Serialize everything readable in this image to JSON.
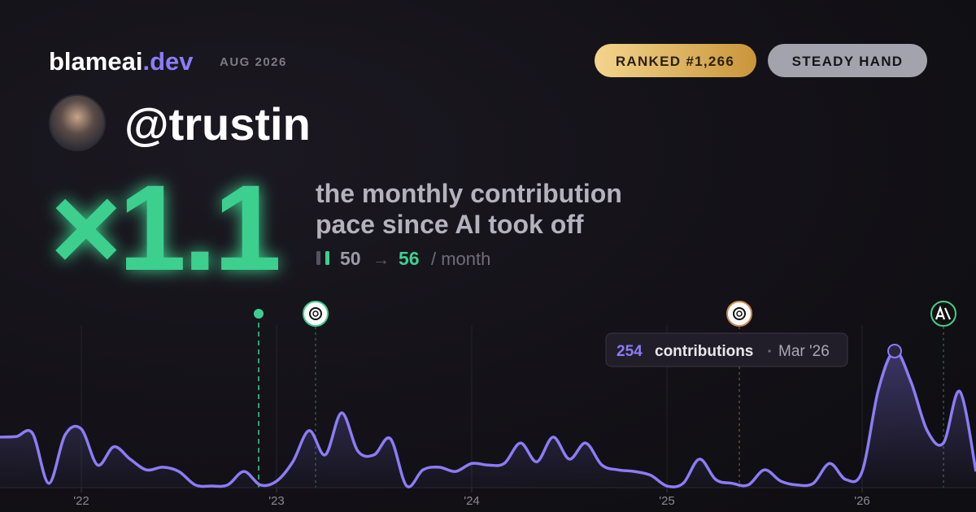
{
  "header": {
    "brand": "blameai",
    "brand_suffix": ".dev",
    "date": "AUG 2026",
    "badges": [
      "RANKED #1,266",
      "STEADY HAND"
    ],
    "username": "@trustin"
  },
  "summary": {
    "multiplier": "×1.1",
    "description": [
      "the monthly contribution",
      "pace since AI took off"
    ],
    "before": 50,
    "arrow": "→",
    "after": 56,
    "unit": "/ month"
  },
  "chart_data": {
    "type": "line",
    "categories": [
      null,
      null,
      null,
      null,
      null,
      "'22",
      null,
      null,
      null,
      null,
      null,
      null,
      null,
      null,
      null,
      null,
      null,
      "'23",
      null,
      null,
      null,
      null,
      null,
      null,
      null,
      null,
      null,
      null,
      null,
      "'24",
      null,
      null,
      null,
      null,
      null,
      null,
      null,
      null,
      null,
      null,
      null,
      "'25",
      null,
      null,
      null,
      null,
      null,
      null,
      null,
      null,
      null,
      null,
      null,
      "'26",
      null,
      null,
      null,
      null,
      null,
      null,
      null
    ],
    "series": [
      {
        "name": "contributions",
        "color": "#8b7cf6",
        "values": [
          94,
          95,
          101,
          8,
          98,
          109,
          42,
          76,
          53,
          33,
          38,
          30,
          5,
          3,
          5,
          30,
          5,
          12,
          48,
          106,
          61,
          139,
          68,
          61,
          91,
          3,
          33,
          38,
          30,
          45,
          42,
          45,
          83,
          48,
          94,
          53,
          83,
          42,
          33,
          30,
          23,
          3,
          8,
          53,
          15,
          8,
          5,
          33,
          12,
          5,
          8,
          45,
          15,
          30,
          182,
          254,
          197,
          106,
          83,
          179,
          30
        ]
      }
    ],
    "ylim": [
      0,
      260
    ],
    "tooltip": {
      "label": "contributions",
      "date": "Mar '26"
    },
    "grid": true
  }
}
